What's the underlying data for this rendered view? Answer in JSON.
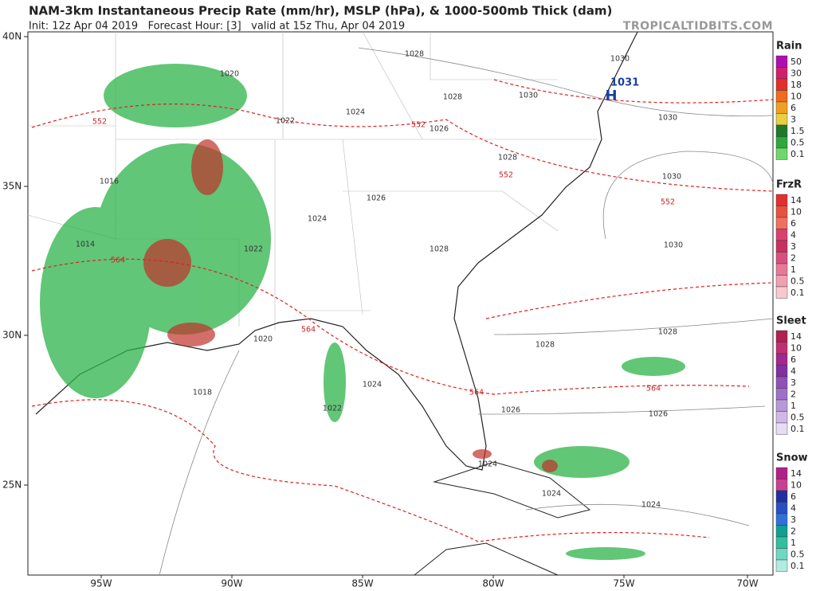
{
  "header": {
    "title": "NAM-3km Instantaneous Precip Rate (mm/hr), MSLP (hPa), & 1000-500mb Thick (dam)",
    "subtitle": "Init: 12z Apr 04 2019   Forecast Hour: [3]   valid at 15z Thu, Apr 04 2019",
    "site": "TROPICALTIDBITS.COM"
  },
  "map": {
    "lat_labels": [
      "40N",
      "35N",
      "30N",
      "25N"
    ],
    "lon_labels": [
      "95W",
      "90W",
      "85W",
      "80W",
      "75W",
      "70W"
    ],
    "pressure_labels": [
      "1028",
      "1030",
      "1020",
      "1028",
      "1030",
      "1030",
      "1022",
      "1024",
      "1026",
      "1028",
      "1030",
      "1026",
      "1024",
      "1016",
      "1014",
      "1028",
      "1030",
      "1022",
      "1020",
      "1028",
      "1028",
      "1024",
      "1018",
      "1022",
      "1026",
      "1026",
      "1024",
      "1024",
      "1024"
    ],
    "thickness_labels": [
      "552",
      "552",
      "552",
      "564",
      "564",
      "564",
      "552",
      "564"
    ],
    "high": {
      "label": "H",
      "value": "1031"
    }
  },
  "legends": [
    {
      "title": "Rain",
      "levels": [
        50,
        30,
        18,
        10,
        6,
        3,
        1.5,
        0.5,
        0.1
      ]
    },
    {
      "title": "FrzR",
      "levels": [
        14,
        10,
        6,
        4,
        3,
        2,
        1,
        0.5,
        0.1
      ]
    },
    {
      "title": "Sleet",
      "levels": [
        14,
        10,
        6,
        4,
        3,
        2,
        1,
        0.5,
        0.1
      ]
    },
    {
      "title": "Snow",
      "levels": [
        14,
        10,
        6,
        4,
        3,
        2,
        1,
        0.5,
        0.1
      ]
    }
  ]
}
